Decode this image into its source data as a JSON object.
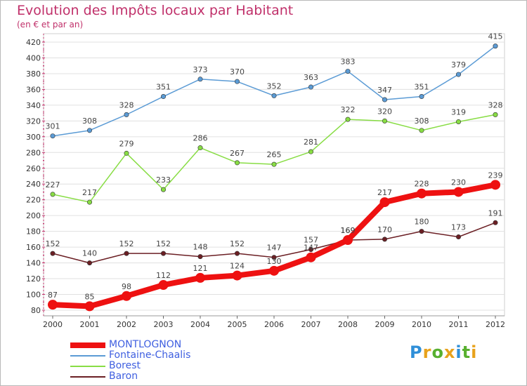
{
  "chart_data": {
    "type": "line",
    "title": "Evolution des Impôts locaux par Habitant",
    "subtitle": "(en € et par an)",
    "xlabel": "",
    "ylabel": "",
    "x": [
      "2000",
      "2001",
      "2002",
      "2003",
      "2004",
      "2005",
      "2006",
      "2007",
      "2008",
      "2009",
      "2010",
      "2011",
      "2012"
    ],
    "ylim": [
      80,
      420
    ],
    "yticks": [
      80,
      100,
      120,
      140,
      160,
      180,
      200,
      220,
      240,
      260,
      280,
      300,
      320,
      340,
      360,
      380,
      400,
      420
    ],
    "grid": true,
    "legend_position": "bottom-left",
    "series": [
      {
        "name": "MONTLOGNON",
        "color": "#ee1111",
        "values": [
          87,
          85,
          98,
          112,
          121,
          124,
          130,
          147,
          169,
          217,
          228,
          230,
          239
        ]
      },
      {
        "name": "Fontaine-Chaalis",
        "color": "#5b9bd5",
        "values": [
          301,
          308,
          328,
          351,
          373,
          370,
          352,
          363,
          383,
          347,
          351,
          379,
          415
        ]
      },
      {
        "name": "Borest",
        "color": "#88dd44",
        "values": [
          227,
          217,
          279,
          233,
          286,
          267,
          265,
          281,
          322,
          320,
          308,
          319,
          328
        ]
      },
      {
        "name": "Baron",
        "color": "#6b1f24",
        "values": [
          152,
          140,
          152,
          152,
          148,
          152,
          147,
          157,
          169,
          170,
          180,
          173,
          191
        ]
      }
    ]
  },
  "logo": {
    "letters": [
      "P",
      "r",
      "o",
      "x",
      "i",
      "t",
      "i"
    ],
    "colors": [
      "#2f8fd8",
      "#e8a21c",
      "#58b030",
      "#e8a21c",
      "#2f8fd8",
      "#58b030",
      "#e8a21c"
    ]
  }
}
